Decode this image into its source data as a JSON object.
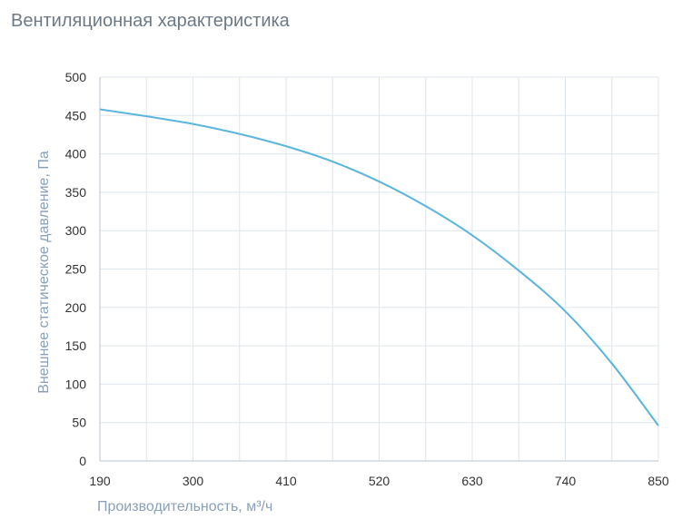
{
  "chart_data": {
    "type": "line",
    "title": "Вентиляционная характеристика",
    "xlabel": "Производительность, м³/ч",
    "ylabel": "Внешнее статическое давление, Па",
    "xlim": [
      190,
      850
    ],
    "ylim": [
      0,
      500
    ],
    "x_ticks": [
      "190",
      "300",
      "410",
      "520",
      "630",
      "740",
      "850"
    ],
    "y_ticks": [
      "0",
      "50",
      "100",
      "150",
      "200",
      "250",
      "300",
      "350",
      "400",
      "450",
      "500"
    ],
    "grid": true,
    "series": [
      {
        "x": [
          190,
          245,
          300,
          355,
          410,
          465,
          520,
          575,
          630,
          685,
          740,
          795,
          850
        ],
        "y": [
          458,
          449,
          439,
          426,
          410,
          390,
          364,
          332,
          294,
          248,
          195,
          127,
          46
        ]
      }
    ],
    "colors": {
      "line": "#5bb5dc",
      "grid": "#dfe6ec",
      "axis": "#bcc6ce"
    }
  }
}
